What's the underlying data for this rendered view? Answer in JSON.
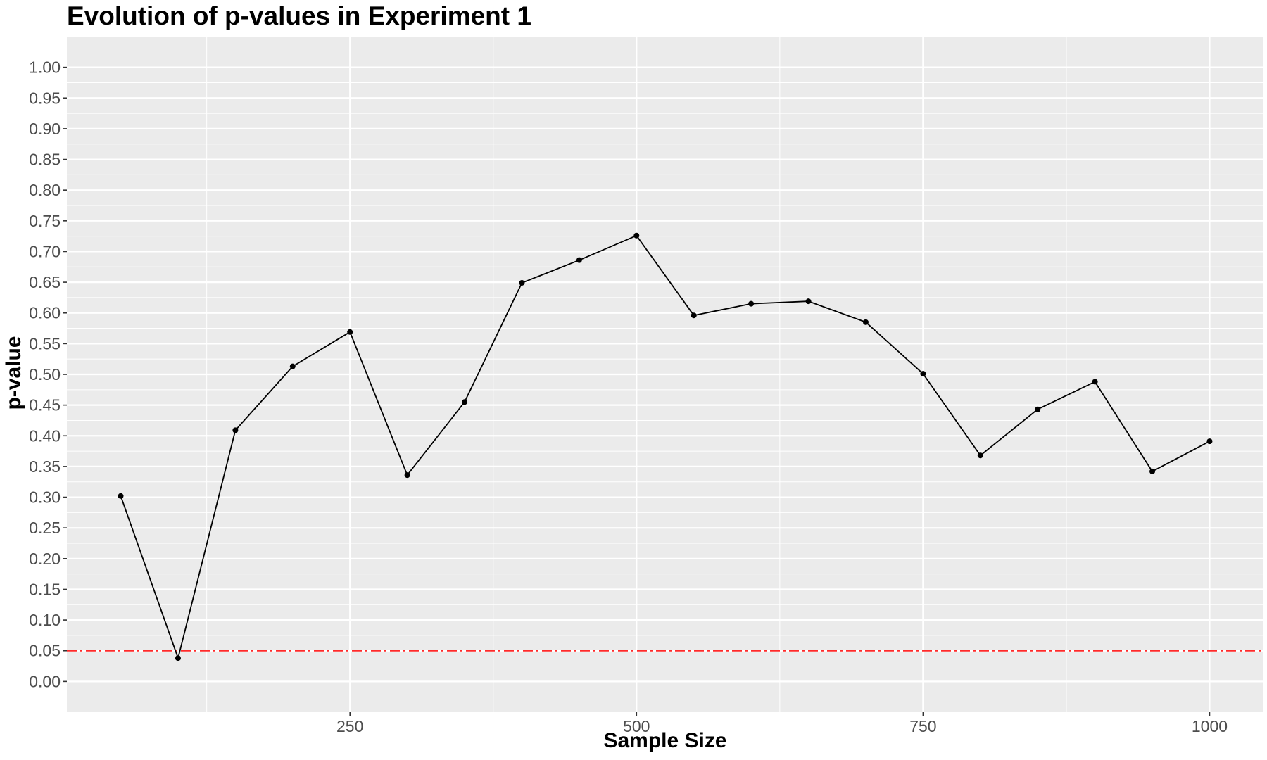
{
  "chart_data": {
    "type": "line",
    "title": "Evolution of p-values in Experiment 1",
    "xlabel": "Sample Size",
    "ylabel": "p-value",
    "x": [
      50,
      100,
      150,
      200,
      250,
      300,
      350,
      400,
      450,
      500,
      550,
      600,
      650,
      700,
      750,
      800,
      850,
      900,
      950,
      1000
    ],
    "series": [
      {
        "name": "p-value",
        "values": [
          0.302,
          0.038,
          0.409,
          0.513,
          0.569,
          0.336,
          0.455,
          0.649,
          0.686,
          0.726,
          0.596,
          0.615,
          0.619,
          0.585,
          0.501,
          0.368,
          0.443,
          0.488,
          0.342,
          0.391
        ],
        "color": "#000000"
      }
    ],
    "reference_line": {
      "y": 0.05,
      "color": "#ff2a2a",
      "style": "dot-dash"
    },
    "xlim": [
      3,
      1047
    ],
    "ylim": [
      -0.05,
      1.05
    ],
    "x_ticks": [
      250,
      500,
      750,
      1000
    ],
    "x_tick_labels": [
      "250",
      "500",
      "750",
      "1000"
    ],
    "y_ticks": [
      0,
      0.05,
      0.1,
      0.15,
      0.2,
      0.25,
      0.3,
      0.35,
      0.4,
      0.45,
      0.5,
      0.55,
      0.6,
      0.65,
      0.7,
      0.75,
      0.8,
      0.85,
      0.9,
      0.95,
      1.0
    ],
    "y_tick_labels": [
      "0.00",
      "0.05",
      "0.10",
      "0.15",
      "0.20",
      "0.25",
      "0.30",
      "0.35",
      "0.40",
      "0.45",
      "0.50",
      "0.55",
      "0.60",
      "0.65",
      "0.70",
      "0.75",
      "0.80",
      "0.85",
      "0.90",
      "0.95",
      "1.00"
    ],
    "grid": true,
    "background": "#ebebeb",
    "gridline_color": "#ffffff"
  }
}
